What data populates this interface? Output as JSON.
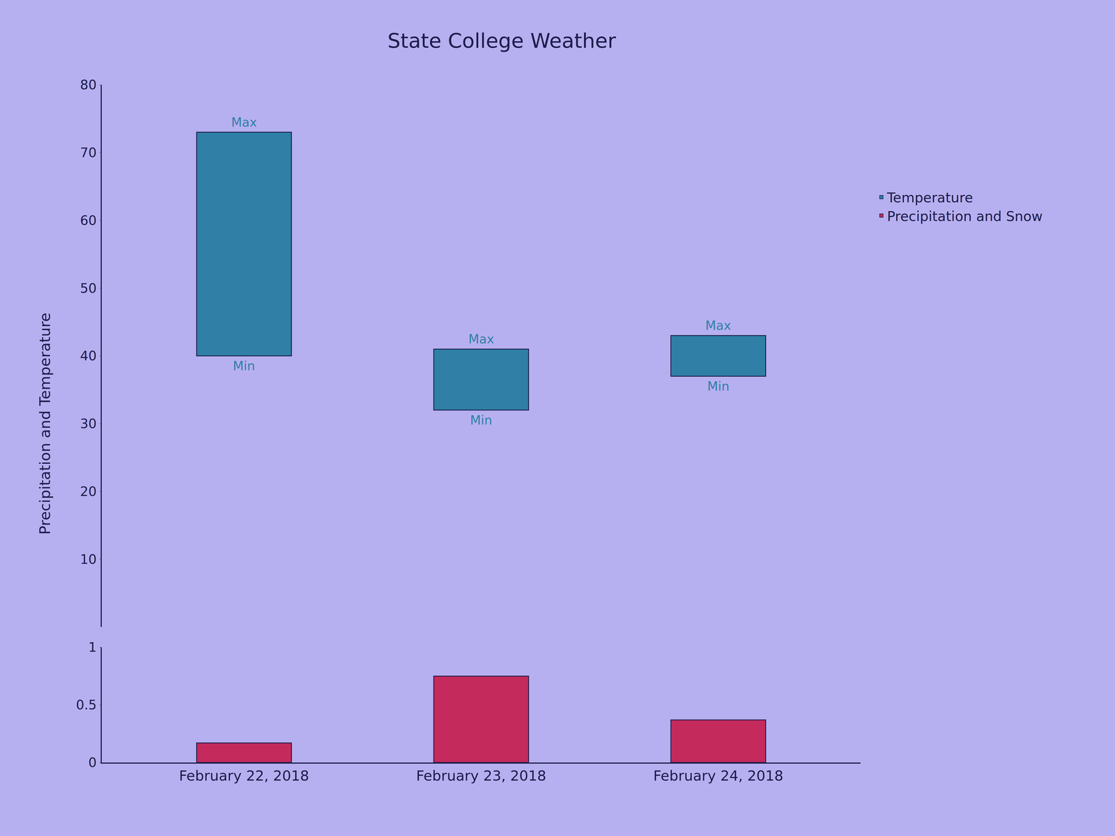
{
  "chart_data": {
    "type": "bar",
    "title": "State College Weather",
    "ylabel": "Precipitation and Temperature",
    "categories": [
      "February 22, 2018",
      "February 23, 2018",
      "February 24, 2018"
    ],
    "series": [
      {
        "name": "Temperature",
        "color": "#2f7fa6",
        "axis": "y2",
        "marker": "star",
        "values": [
          73,
          41,
          43
        ],
        "min": [
          40,
          32,
          37
        ],
        "max_label": "Max",
        "min_label": "Min"
      },
      {
        "name": "Precipitation and Snow",
        "color": "#c42a5c",
        "marker": "square",
        "values": [
          0.17,
          0.75,
          0.37
        ]
      }
    ],
    "ylim": [
      0,
      1
    ],
    "yticks": [
      0,
      0.5,
      1
    ],
    "y2lim": [
      0,
      80
    ],
    "y2ticks": [
      10,
      20,
      30,
      40,
      50,
      60,
      70,
      80
    ],
    "grid": false,
    "legend": "right"
  }
}
